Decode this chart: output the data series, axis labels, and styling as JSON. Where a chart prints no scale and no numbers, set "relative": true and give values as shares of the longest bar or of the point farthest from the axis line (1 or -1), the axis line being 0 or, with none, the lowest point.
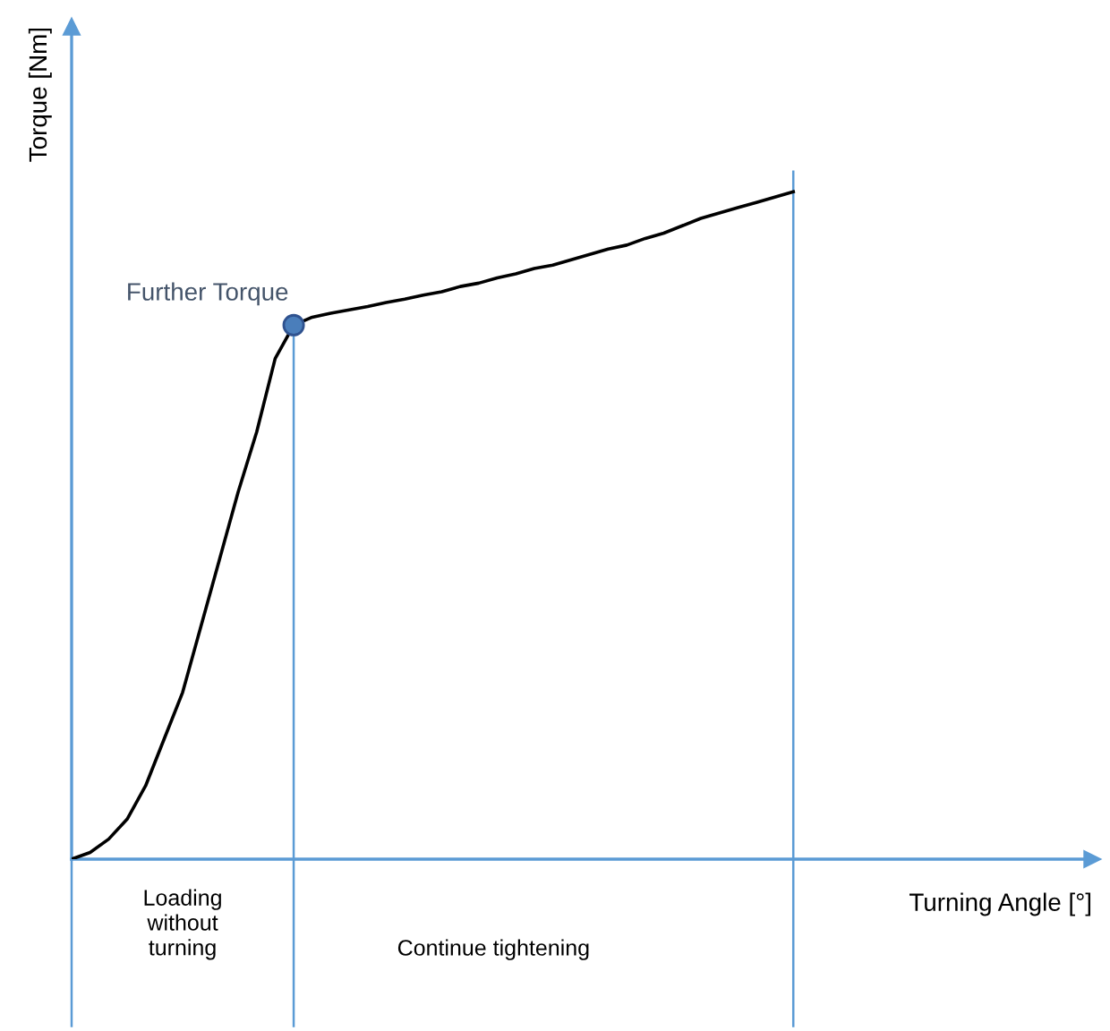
{
  "chart_data": {
    "type": "line",
    "relative": true,
    "xlabel": "Turning Angle [°]",
    "ylabel": "Torque [Nm]",
    "categories": [
      null,
      null,
      null,
      null,
      null,
      null,
      null,
      null,
      null,
      null,
      null,
      null,
      null,
      null,
      null,
      null,
      null,
      null,
      null,
      null,
      null,
      null,
      null,
      null,
      null,
      null,
      null,
      null,
      null,
      null,
      null,
      null,
      null,
      null,
      null,
      null,
      null,
      null,
      null,
      null
    ],
    "series": [
      {
        "color": "#000000",
        "values": [
          0,
          0.01,
          0.03,
          0.06,
          0.11,
          0.18,
          0.25,
          0.35,
          0.45,
          0.55,
          0.64,
          0.75,
          0.8,
          0.812,
          0.818,
          0.823,
          0.828,
          0.834,
          0.839,
          0.845,
          0.85,
          0.858,
          0.863,
          0.871,
          0.877,
          0.885,
          0.89,
          0.898,
          0.906,
          0.914,
          0.92,
          0.93,
          0.938,
          0.949,
          0.96,
          0.968,
          0.976,
          0.984,
          0.992,
          1.0
        ]
      }
    ],
    "annotations": [
      "Further Torque",
      "Loading\nwithout\nturning",
      "Continue tightening"
    ]
  }
}
